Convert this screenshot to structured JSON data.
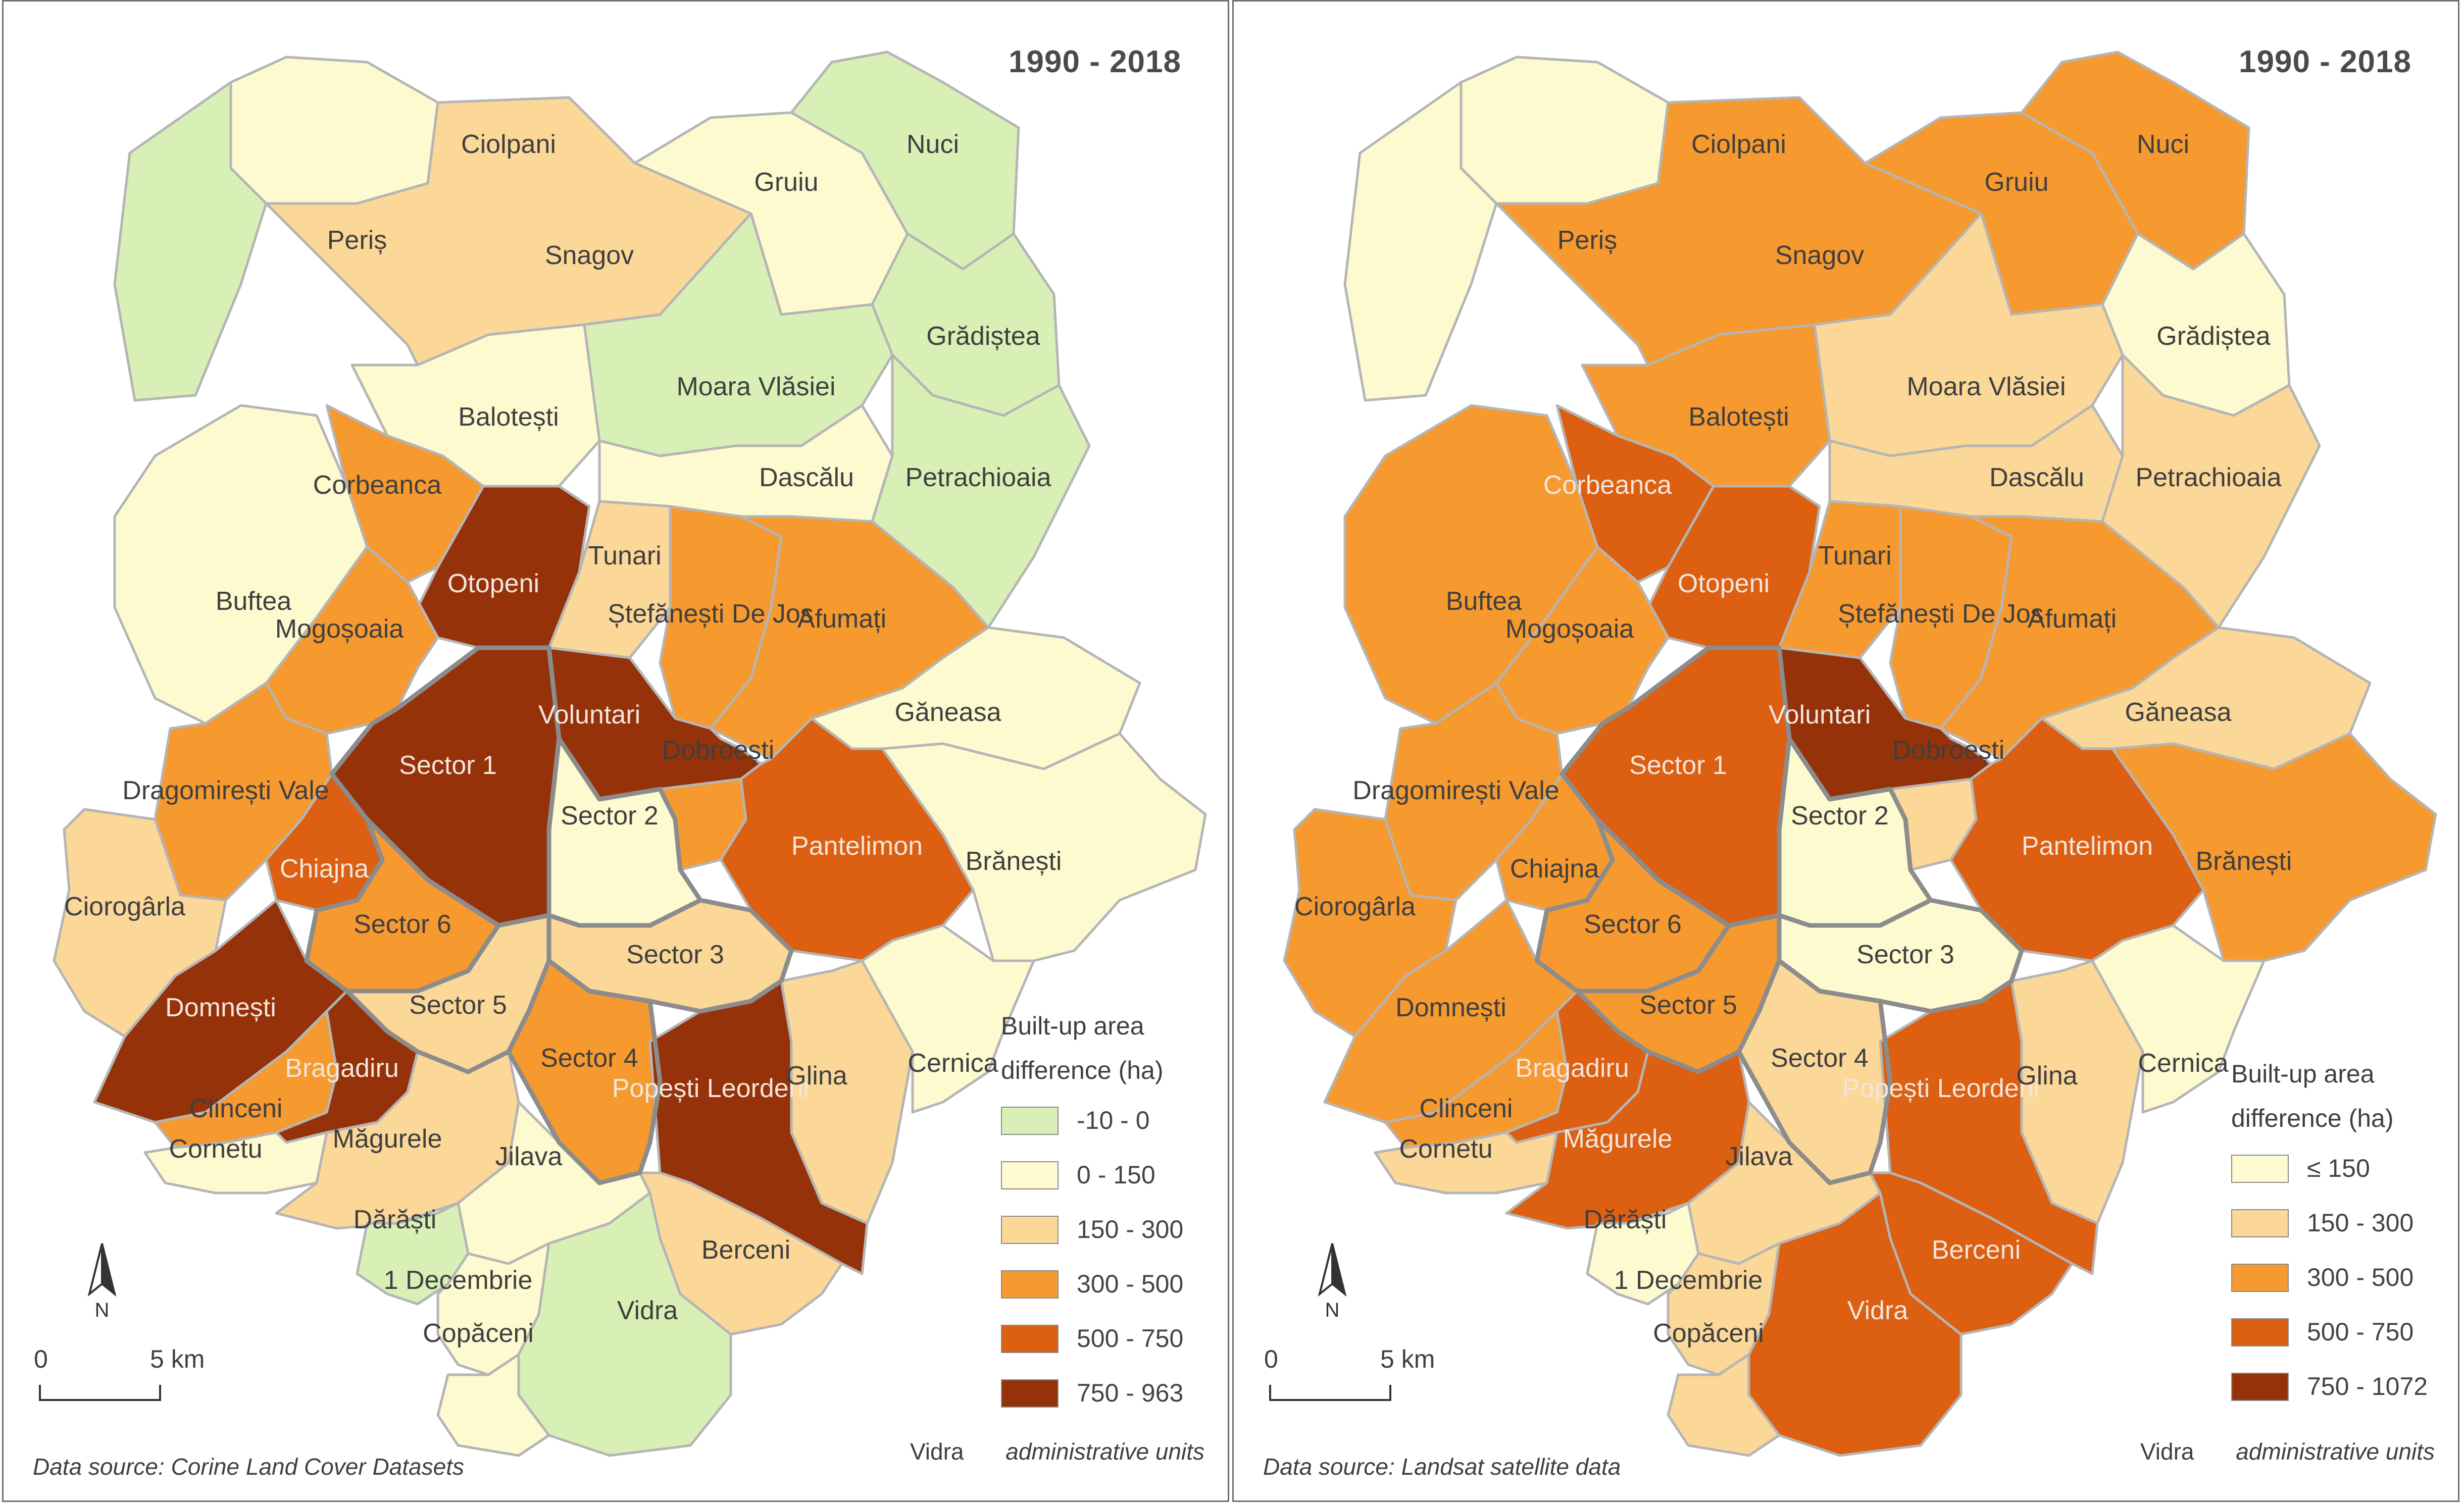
{
  "maps": [
    {
      "title": "1990 - 2018",
      "legend": {
        "title_line1": "Built-up area",
        "title_line2": "difference (ha)",
        "classes": [
          {
            "label": "-10 - 0",
            "color": "#d8f0b6"
          },
          {
            "label": "0 - 150",
            "color": "#fdfad0"
          },
          {
            "label": "150 - 300",
            "color": "#fbd798"
          },
          {
            "label": "300 - 500",
            "color": "#f6992f"
          },
          {
            "label": "500 - 750",
            "color": "#dc5f12"
          },
          {
            "label": "750 - 963",
            "color": "#95320a"
          }
        ]
      },
      "source": "Data source: Corine Land Cover Datasets",
      "unit_key_name": "Vidra",
      "unit_key_desc": "administrative units",
      "units": [
        {
          "name": "Ciolpani",
          "class": 1
        },
        {
          "name": "Periș",
          "class": 0
        },
        {
          "name": "Snagov",
          "class": 2
        },
        {
          "name": "Gruiu",
          "class": 1
        },
        {
          "name": "Nuci",
          "class": 0
        },
        {
          "name": "Grădiștea",
          "class": 0
        },
        {
          "name": "Moara Vlăsiei",
          "class": 0
        },
        {
          "name": "Balotești",
          "class": 1
        },
        {
          "name": "Dascălu",
          "class": 1
        },
        {
          "name": "Petrachioaia",
          "class": 0
        },
        {
          "name": "Corbeanca",
          "class": 3
        },
        {
          "name": "Buftea",
          "class": 1
        },
        {
          "name": "Otopeni",
          "class": 5
        },
        {
          "name": "Tunari",
          "class": 2
        },
        {
          "name": "Ștefănești De Jos",
          "class": 3
        },
        {
          "name": "Afumați",
          "class": 3
        },
        {
          "name": "Mogoșoaia",
          "class": 3
        },
        {
          "name": "Voluntari",
          "class": 5
        },
        {
          "name": "Găneasa",
          "class": 1
        },
        {
          "name": "Sector 1",
          "class": 5
        },
        {
          "name": "Dragomirești Vale",
          "class": 3
        },
        {
          "name": "Sector 2",
          "class": 1
        },
        {
          "name": "Dobroești",
          "class": 3
        },
        {
          "name": "Pantelimon",
          "class": 4
        },
        {
          "name": "Brănești",
          "class": 1
        },
        {
          "name": "Chiajna",
          "class": 4
        },
        {
          "name": "Ciorogârla",
          "class": 2
        },
        {
          "name": "Sector 6",
          "class": 3
        },
        {
          "name": "Sector 3",
          "class": 2
        },
        {
          "name": "Domnești",
          "class": 5
        },
        {
          "name": "Sector 5",
          "class": 2
        },
        {
          "name": "Sector 4",
          "class": 3
        },
        {
          "name": "Popești Leordeni",
          "class": 5
        },
        {
          "name": "Glina",
          "class": 2
        },
        {
          "name": "Cernica",
          "class": 1
        },
        {
          "name": "Clinceni",
          "class": 3
        },
        {
          "name": "Bragadiru",
          "class": 5
        },
        {
          "name": "Cornetu",
          "class": 1
        },
        {
          "name": "Măgurele",
          "class": 2
        },
        {
          "name": "Jilava",
          "class": 1
        },
        {
          "name": "Berceni",
          "class": 2
        },
        {
          "name": "Dărăști",
          "class": 0
        },
        {
          "name": "1 Decembrie",
          "class": 1
        },
        {
          "name": "Vidra",
          "class": 0
        },
        {
          "name": "Copăceni",
          "class": 1
        }
      ]
    },
    {
      "title": "1990 - 2018",
      "legend": {
        "title_line1": "Built-up area",
        "title_line2": "difference (ha)",
        "classes": [
          {
            "label": "≤ 150",
            "color": "#fdfad0"
          },
          {
            "label": "150 - 300",
            "color": "#fbd798"
          },
          {
            "label": "300 - 500",
            "color": "#f6992f"
          },
          {
            "label": "500 - 750",
            "color": "#dc5f12"
          },
          {
            "label": "750 - 1072",
            "color": "#95320a"
          }
        ]
      },
      "source": "Data source: Landsat satellite data",
      "unit_key_name": "Vidra",
      "unit_key_desc": "administrative units",
      "units": [
        {
          "name": "Ciolpani",
          "class": 0
        },
        {
          "name": "Periș",
          "class": 0
        },
        {
          "name": "Snagov",
          "class": 2
        },
        {
          "name": "Gruiu",
          "class": 2
        },
        {
          "name": "Nuci",
          "class": 2
        },
        {
          "name": "Grădiștea",
          "class": 0
        },
        {
          "name": "Moara Vlăsiei",
          "class": 1
        },
        {
          "name": "Balotești",
          "class": 2
        },
        {
          "name": "Dascălu",
          "class": 1
        },
        {
          "name": "Petrachioaia",
          "class": 1
        },
        {
          "name": "Corbeanca",
          "class": 3
        },
        {
          "name": "Buftea",
          "class": 2
        },
        {
          "name": "Otopeni",
          "class": 3
        },
        {
          "name": "Tunari",
          "class": 2
        },
        {
          "name": "Ștefănești De Jos",
          "class": 2
        },
        {
          "name": "Afumați",
          "class": 2
        },
        {
          "name": "Mogoșoaia",
          "class": 2
        },
        {
          "name": "Voluntari",
          "class": 4
        },
        {
          "name": "Găneasa",
          "class": 1
        },
        {
          "name": "Sector 1",
          "class": 3
        },
        {
          "name": "Dragomirești Vale",
          "class": 2
        },
        {
          "name": "Sector 2",
          "class": 0
        },
        {
          "name": "Dobroești",
          "class": 1
        },
        {
          "name": "Pantelimon",
          "class": 3
        },
        {
          "name": "Brănești",
          "class": 2
        },
        {
          "name": "Chiajna",
          "class": 2
        },
        {
          "name": "Ciorogârla",
          "class": 2
        },
        {
          "name": "Sector 6",
          "class": 2
        },
        {
          "name": "Sector 3",
          "class": 0
        },
        {
          "name": "Domnești",
          "class": 2
        },
        {
          "name": "Sector 5",
          "class": 2
        },
        {
          "name": "Sector 4",
          "class": 1
        },
        {
          "name": "Popești Leordeni",
          "class": 3
        },
        {
          "name": "Glina",
          "class": 1
        },
        {
          "name": "Cernica",
          "class": 0
        },
        {
          "name": "Clinceni",
          "class": 2
        },
        {
          "name": "Bragadiru",
          "class": 3
        },
        {
          "name": "Cornetu",
          "class": 1
        },
        {
          "name": "Măgurele",
          "class": 3
        },
        {
          "name": "Jilava",
          "class": 1
        },
        {
          "name": "Berceni",
          "class": 3
        },
        {
          "name": "Dărăști",
          "class": 0
        },
        {
          "name": "1 Decembrie",
          "class": 1
        },
        {
          "name": "Vidra",
          "class": 3
        },
        {
          "name": "Copăceni",
          "class": 1
        }
      ]
    }
  ],
  "scale": {
    "start_label": "0",
    "end_label": "5 km"
  },
  "north_label": "N",
  "colors": {
    "border": "#b5b5b5",
    "bucharest_border": "#8c8c8c",
    "label_text": "#3f3f3f",
    "background": "#ffffff"
  }
}
